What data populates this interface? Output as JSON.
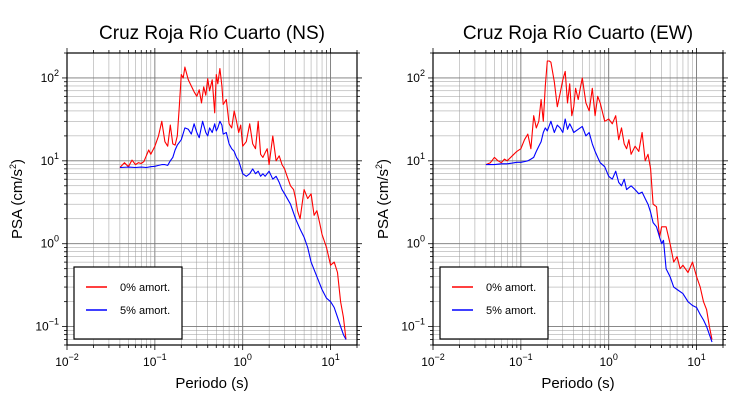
{
  "chart_data": [
    {
      "type": "line",
      "title": "Cruz Roja Río Cuarto (NS)",
      "xlabel": "Periodo (s)",
      "ylabel_text": "PSA (cm/s",
      "ylabel_exp": "2",
      "ylabel_close": ")",
      "xscale": "log",
      "yscale": "log",
      "xlim": [
        0.01,
        20
      ],
      "ylim": [
        0.06,
        200
      ],
      "grid": true,
      "legend_position": "bottom-left",
      "xticks": [
        {
          "value": 0.01,
          "base": "10",
          "exp": "−2"
        },
        {
          "value": 0.1,
          "base": "10",
          "exp": "−1"
        },
        {
          "value": 1,
          "base": "10",
          "exp": "0"
        },
        {
          "value": 10,
          "base": "10",
          "exp": "1"
        }
      ],
      "yticks": [
        {
          "value": 0.1,
          "base": "10",
          "exp": "−1"
        },
        {
          "value": 1,
          "base": "10",
          "exp": "0"
        },
        {
          "value": 10,
          "base": "10",
          "exp": "1"
        },
        {
          "value": 100,
          "base": "10",
          "exp": "2"
        }
      ],
      "series": [
        {
          "name": "0% amort.",
          "color": "#ff0000",
          "x": [
            0.04,
            0.045,
            0.05,
            0.055,
            0.06,
            0.065,
            0.07,
            0.075,
            0.08,
            0.085,
            0.09,
            0.1,
            0.11,
            0.12,
            0.13,
            0.14,
            0.15,
            0.16,
            0.17,
            0.18,
            0.19,
            0.2,
            0.21,
            0.22,
            0.24,
            0.26,
            0.28,
            0.3,
            0.32,
            0.34,
            0.36,
            0.38,
            0.4,
            0.42,
            0.45,
            0.48,
            0.5,
            0.52,
            0.55,
            0.58,
            0.6,
            0.65,
            0.7,
            0.75,
            0.8,
            0.85,
            0.9,
            0.95,
            1.0,
            1.1,
            1.2,
            1.3,
            1.4,
            1.5,
            1.6,
            1.7,
            1.8,
            1.9,
            2.0,
            2.2,
            2.4,
            2.6,
            2.8,
            3.0,
            3.2,
            3.5,
            3.8,
            4.0,
            4.2,
            4.5,
            5.0,
            5.5,
            6.0,
            6.5,
            7.0,
            7.5,
            8.0,
            9.0,
            10.0,
            11.0,
            12.0,
            13.0,
            14.0,
            15.0
          ],
          "y": [
            8.3,
            9.5,
            8.5,
            10.2,
            9.0,
            9.5,
            9.3,
            9.8,
            11.5,
            13.5,
            12.0,
            15.0,
            20.0,
            30.0,
            17.0,
            15.0,
            27.0,
            16.0,
            15.5,
            20.0,
            45.0,
            110.0,
            100.0,
            135.0,
            95.0,
            80.0,
            68.0,
            60.0,
            72.0,
            50.0,
            78.0,
            62.0,
            98.0,
            70.0,
            95.0,
            38.0,
            110.0,
            85.0,
            130.0,
            80.0,
            48.0,
            55.0,
            28.0,
            25.0,
            40.0,
            30.0,
            22.0,
            27.0,
            15.0,
            17.0,
            28.0,
            16.0,
            14.0,
            30.0,
            12.0,
            11.0,
            12.5,
            14.0,
            9.0,
            20.0,
            10.0,
            11.5,
            9.0,
            8.0,
            6.5,
            5.0,
            4.5,
            3.5,
            2.5,
            2.0,
            4.5,
            3.5,
            4.0,
            2.2,
            2.5,
            1.8,
            1.3,
            0.9,
            0.55,
            0.6,
            0.45,
            0.2,
            0.13,
            0.07
          ]
        },
        {
          "name": "5% amort.",
          "color": "#0000ff",
          "x": [
            0.04,
            0.05,
            0.06,
            0.07,
            0.08,
            0.09,
            0.1,
            0.11,
            0.12,
            0.13,
            0.14,
            0.15,
            0.16,
            0.17,
            0.18,
            0.2,
            0.22,
            0.24,
            0.26,
            0.28,
            0.3,
            0.32,
            0.35,
            0.38,
            0.4,
            0.42,
            0.45,
            0.48,
            0.5,
            0.52,
            0.55,
            0.58,
            0.6,
            0.65,
            0.7,
            0.75,
            0.8,
            0.85,
            0.9,
            1.0,
            1.1,
            1.2,
            1.3,
            1.4,
            1.5,
            1.6,
            1.7,
            1.8,
            2.0,
            2.2,
            2.4,
            2.6,
            2.8,
            3.0,
            3.5,
            4.0,
            4.5,
            5.0,
            5.5,
            6.0,
            7.0,
            8.0,
            9.0,
            10.0,
            11.0,
            12.0,
            13.0,
            14.0,
            15.0
          ],
          "y": [
            8.3,
            8.4,
            8.3,
            8.4,
            8.3,
            8.5,
            8.6,
            8.8,
            9.0,
            9.0,
            8.8,
            10.0,
            11.0,
            13.5,
            15.5,
            18.0,
            25.0,
            24.0,
            21.0,
            28.0,
            22.0,
            19.0,
            30.0,
            22.0,
            20.0,
            25.0,
            22.0,
            28.0,
            23.0,
            25.0,
            30.0,
            27.0,
            21.0,
            22.0,
            16.0,
            14.0,
            13.0,
            11.0,
            10.0,
            7.0,
            6.5,
            7.0,
            8.0,
            7.0,
            7.5,
            6.5,
            7.0,
            6.5,
            7.5,
            6.0,
            6.5,
            5.5,
            4.5,
            4.0,
            3.0,
            2.0,
            1.5,
            1.2,
            0.9,
            0.6,
            0.4,
            0.28,
            0.22,
            0.2,
            0.17,
            0.13,
            0.1,
            0.08,
            0.07
          ]
        }
      ]
    },
    {
      "type": "line",
      "title": "Cruz Roja Río Cuarto (EW)",
      "xlabel": "Periodo (s)",
      "ylabel_text": "PSA (cm/s",
      "ylabel_exp": "2",
      "ylabel_close": ")",
      "xscale": "log",
      "yscale": "log",
      "xlim": [
        0.01,
        20
      ],
      "ylim": [
        0.06,
        200
      ],
      "grid": true,
      "legend_position": "bottom-left",
      "xticks": [
        {
          "value": 0.01,
          "base": "10",
          "exp": "−2"
        },
        {
          "value": 0.1,
          "base": "10",
          "exp": "−1"
        },
        {
          "value": 1,
          "base": "10",
          "exp": "0"
        },
        {
          "value": 10,
          "base": "10",
          "exp": "1"
        }
      ],
      "yticks": [
        {
          "value": 0.1,
          "base": "10",
          "exp": "−1"
        },
        {
          "value": 1,
          "base": "10",
          "exp": "0"
        },
        {
          "value": 10,
          "base": "10",
          "exp": "1"
        },
        {
          "value": 100,
          "base": "10",
          "exp": "2"
        }
      ],
      "series": [
        {
          "name": "0% amort.",
          "color": "#ff0000",
          "x": [
            0.04,
            0.045,
            0.05,
            0.055,
            0.06,
            0.065,
            0.07,
            0.08,
            0.09,
            0.1,
            0.11,
            0.12,
            0.13,
            0.14,
            0.15,
            0.16,
            0.17,
            0.18,
            0.19,
            0.2,
            0.21,
            0.22,
            0.24,
            0.26,
            0.28,
            0.3,
            0.32,
            0.34,
            0.36,
            0.38,
            0.4,
            0.42,
            0.45,
            0.48,
            0.5,
            0.55,
            0.6,
            0.65,
            0.7,
            0.75,
            0.8,
            0.9,
            1.0,
            1.1,
            1.2,
            1.3,
            1.4,
            1.5,
            1.6,
            1.7,
            1.8,
            2.0,
            2.2,
            2.4,
            2.6,
            2.8,
            3.0,
            3.2,
            3.5,
            3.8,
            4.0,
            4.5,
            5.0,
            5.5,
            6.0,
            6.5,
            7.0,
            8.0,
            9.0,
            10.0,
            11.0,
            12.0,
            13.0,
            14.0,
            15.0
          ],
          "y": [
            9.0,
            9.5,
            11.0,
            10.0,
            9.5,
            10.5,
            10.0,
            11.5,
            13.0,
            14.0,
            18.0,
            21.0,
            14.0,
            35.0,
            25.0,
            30.0,
            55.0,
            30.0,
            80.0,
            160.0,
            160.0,
            155.0,
            90.0,
            45.0,
            65.0,
            95.0,
            120.0,
            50.0,
            85.0,
            35.0,
            45.0,
            75.0,
            55.0,
            80.0,
            100.0,
            50.0,
            40.0,
            75.0,
            35.0,
            60.0,
            50.0,
            30.0,
            32.0,
            28.0,
            35.0,
            18.0,
            25.0,
            16.0,
            14.0,
            18.0,
            12.0,
            15.0,
            13.0,
            22.0,
            10.0,
            12.0,
            8.0,
            3.0,
            2.8,
            1.2,
            1.6,
            1.6,
            1.0,
            0.6,
            0.7,
            0.5,
            0.55,
            0.45,
            0.6,
            0.4,
            0.3,
            0.2,
            0.16,
            0.1,
            0.07
          ]
        },
        {
          "name": "5% amort.",
          "color": "#0000ff",
          "x": [
            0.04,
            0.05,
            0.06,
            0.07,
            0.08,
            0.09,
            0.1,
            0.11,
            0.12,
            0.13,
            0.14,
            0.15,
            0.16,
            0.17,
            0.18,
            0.19,
            0.2,
            0.22,
            0.24,
            0.26,
            0.28,
            0.3,
            0.32,
            0.34,
            0.36,
            0.38,
            0.4,
            0.45,
            0.5,
            0.55,
            0.6,
            0.65,
            0.7,
            0.75,
            0.8,
            0.9,
            1.0,
            1.1,
            1.2,
            1.3,
            1.4,
            1.5,
            1.6,
            1.8,
            2.0,
            2.2,
            2.4,
            2.6,
            2.8,
            3.0,
            3.2,
            3.5,
            3.8,
            4.0,
            4.2,
            4.5,
            5.0,
            5.5,
            6.0,
            7.0,
            8.0,
            9.0,
            10.0,
            11.0,
            12.0,
            13.0,
            14.0,
            15.0
          ],
          "y": [
            9.0,
            9.0,
            9.2,
            9.2,
            9.4,
            9.6,
            9.6,
            9.8,
            10.0,
            10.5,
            11.0,
            13.0,
            15.0,
            17.0,
            22.0,
            25.0,
            23.0,
            30.0,
            22.0,
            27.0,
            25.0,
            22.0,
            32.0,
            24.0,
            28.0,
            25.0,
            22.0,
            24.0,
            26.0,
            20.0,
            22.0,
            16.0,
            13.0,
            11.0,
            9.5,
            8.5,
            6.5,
            6.0,
            7.5,
            5.5,
            5.0,
            6.0,
            4.5,
            5.0,
            4.5,
            4.0,
            4.2,
            3.5,
            3.0,
            2.4,
            1.8,
            1.6,
            1.2,
            1.0,
            1.1,
            0.5,
            0.4,
            0.3,
            0.28,
            0.25,
            0.2,
            0.18,
            0.17,
            0.14,
            0.12,
            0.1,
            0.08,
            0.065
          ]
        }
      ]
    }
  ]
}
